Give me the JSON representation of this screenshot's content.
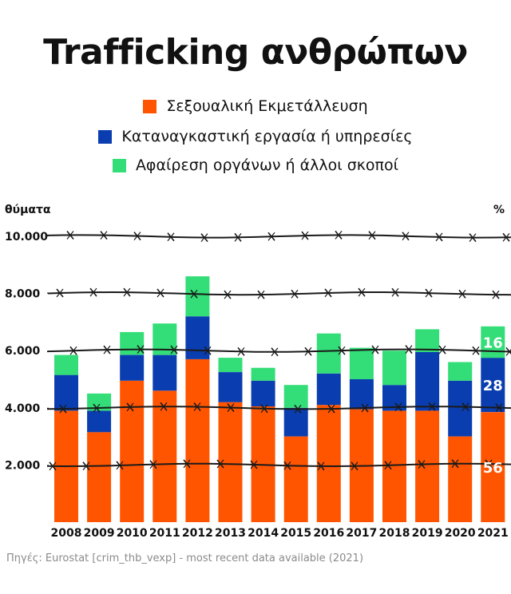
{
  "title": "Trafficking ανθρώπων",
  "source": "Πηγές: Eurostat [crim_thb_vexp] - most recent data available (2021)",
  "colors": {
    "sexual": "#ff5500",
    "labour": "#0a3eb0",
    "other": "#33dd77"
  },
  "chart_data": {
    "type": "bar",
    "stacked": true,
    "ylabel": "θύματα",
    "y2label": "%",
    "ylim": [
      0,
      10000
    ],
    "yticks": [
      {
        "value": 2000,
        "label": "2.000"
      },
      {
        "value": 4000,
        "label": "4.000"
      },
      {
        "value": 6000,
        "label": "6.000"
      },
      {
        "value": 8000,
        "label": "8.000"
      },
      {
        "value": 10000,
        "label": "10.000"
      }
    ],
    "categories": [
      "2008",
      "2009",
      "2010",
      "2011",
      "2012",
      "2013",
      "2014",
      "2015",
      "2016",
      "2017",
      "2018",
      "2019",
      "2020",
      "2021"
    ],
    "legend_position": "top-center",
    "series": [
      {
        "name": "Σεξουαλική Εκμετάλλευση",
        "key": "sexual",
        "values": [
          3900,
          3150,
          4950,
          4600,
          5700,
          4200,
          4050,
          3000,
          4100,
          3950,
          3900,
          3900,
          3000,
          3850
        ]
      },
      {
        "name": "Καταναγκαστική εργασία ή υπηρεσίες",
        "key": "labour",
        "values": [
          1250,
          750,
          900,
          1250,
          1500,
          1050,
          900,
          1000,
          1100,
          1050,
          900,
          2050,
          1950,
          1900
        ]
      },
      {
        "name": "Αφαίρεση οργάνων ή άλλοι σκοποί",
        "key": "other",
        "values": [
          700,
          600,
          800,
          1100,
          1400,
          500,
          450,
          800,
          1400,
          1100,
          1200,
          800,
          650,
          1100
        ]
      }
    ],
    "annotations": [
      {
        "category": "2021",
        "series": "sexual",
        "label": "56"
      },
      {
        "category": "2021",
        "series": "labour",
        "label": "28"
      },
      {
        "category": "2021",
        "series": "other",
        "label": "16"
      }
    ]
  }
}
